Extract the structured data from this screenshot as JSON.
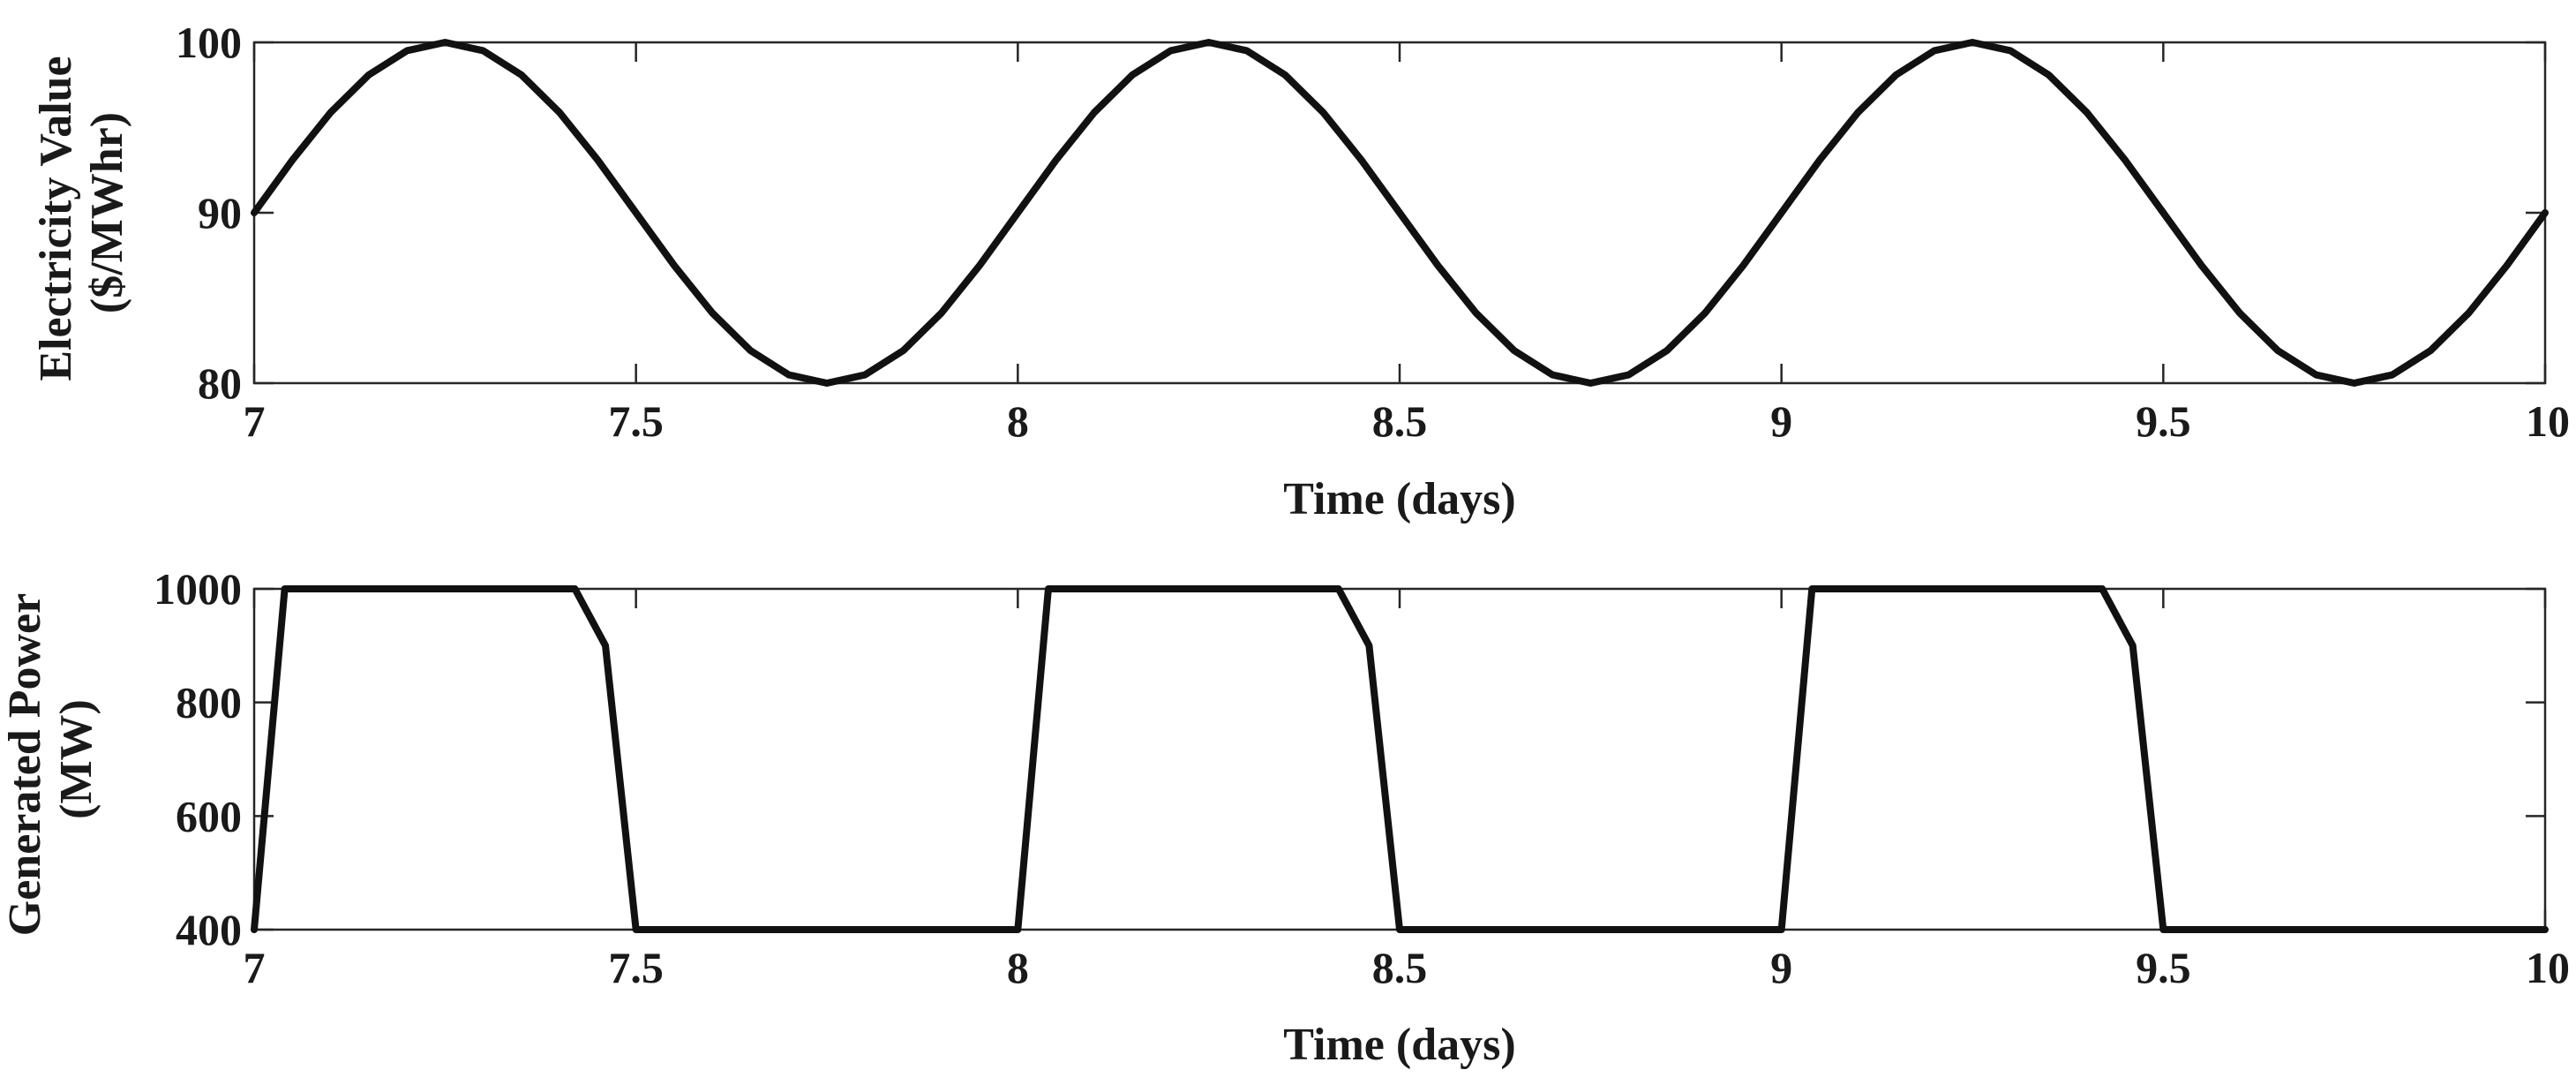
{
  "colors": {
    "axis": "#262626",
    "text": "#1a1a1a",
    "series": "#111111",
    "background": "#ffffff"
  },
  "chart_data": [
    {
      "type": "line",
      "title": "",
      "xlabel": "Time (days)",
      "ylabel": [
        "Electricity Value",
        "($/MWhr)"
      ],
      "xlim": [
        7,
        10
      ],
      "ylim": [
        80,
        100
      ],
      "xticks": [
        7,
        7.5,
        8,
        8.5,
        9,
        9.5,
        10
      ],
      "yticks": [
        80,
        90,
        100
      ],
      "xtick_labels": [
        "7",
        "7.5",
        "8",
        "8.5",
        "9",
        "9.5",
        "10"
      ],
      "ytick_labels": [
        "80",
        "90",
        "100"
      ],
      "grid": false,
      "series": [
        {
          "x": [
            7.0,
            7.05,
            7.1,
            7.15,
            7.2,
            7.25,
            7.3,
            7.35,
            7.4,
            7.45,
            7.5,
            7.55,
            7.6,
            7.65,
            7.7,
            7.75,
            7.8,
            7.85,
            7.9,
            7.95,
            8.0,
            8.05,
            8.1,
            8.15,
            8.2,
            8.25,
            8.3,
            8.35,
            8.4,
            8.45,
            8.5,
            8.55,
            8.6,
            8.65,
            8.7,
            8.75,
            8.8,
            8.85,
            8.9,
            8.95,
            9.0,
            9.05,
            9.1,
            9.15,
            9.2,
            9.25,
            9.3,
            9.35,
            9.4,
            9.45,
            9.5,
            9.55,
            9.6,
            9.65,
            9.7,
            9.75,
            9.8,
            9.85,
            9.9,
            9.95,
            10.0
          ],
          "y": [
            90.0,
            93.09,
            95.88,
            98.09,
            99.51,
            100.0,
            99.51,
            98.09,
            95.88,
            93.09,
            90.0,
            86.91,
            84.12,
            81.91,
            80.49,
            80.0,
            80.49,
            81.91,
            84.12,
            86.91,
            90.0,
            93.09,
            95.88,
            98.09,
            99.51,
            100.0,
            99.51,
            98.09,
            95.88,
            93.09,
            90.0,
            86.91,
            84.12,
            81.91,
            80.49,
            80.0,
            80.49,
            81.91,
            84.12,
            86.91,
            90.0,
            93.09,
            95.88,
            98.09,
            99.51,
            100.0,
            99.51,
            98.09,
            95.88,
            93.09,
            90.0,
            86.91,
            84.12,
            81.91,
            80.49,
            80.0,
            80.49,
            81.91,
            84.12,
            86.91,
            90.0
          ]
        }
      ]
    },
    {
      "type": "line",
      "title": "",
      "xlabel": "Time (days)",
      "ylabel": [
        "Generated Power",
        "(MW)"
      ],
      "xlim": [
        7,
        10
      ],
      "ylim": [
        400,
        1000
      ],
      "xticks": [
        7,
        7.5,
        8,
        8.5,
        9,
        9.5,
        10
      ],
      "yticks": [
        400,
        600,
        800,
        1000
      ],
      "xtick_labels": [
        "7",
        "7.5",
        "8",
        "8.5",
        "9",
        "9.5",
        "10"
      ],
      "ytick_labels": [
        "400",
        "600",
        "800",
        "1000"
      ],
      "grid": false,
      "series": [
        {
          "x": [
            7.0,
            7.04,
            7.42,
            7.46,
            7.5,
            8.0,
            8.04,
            8.42,
            8.46,
            8.5,
            9.0,
            9.04,
            9.42,
            9.46,
            9.5,
            10.0
          ],
          "y": [
            400,
            1000,
            1000,
            900,
            400,
            400,
            1000,
            1000,
            900,
            400,
            400,
            1000,
            1000,
            900,
            400,
            400
          ]
        }
      ]
    }
  ]
}
